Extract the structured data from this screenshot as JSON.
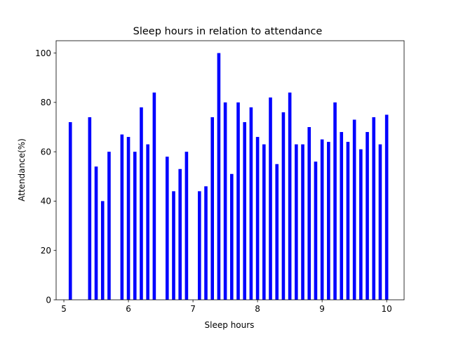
{
  "chart_data": {
    "type": "bar",
    "title": "Sleep hours in relation to attendance",
    "xlabel": "Sleep hours",
    "ylabel": "Attendance(%)",
    "xlim": [
      4.88,
      10.27
    ],
    "ylim": [
      0,
      105
    ],
    "xticks": [
      5,
      6,
      7,
      8,
      9,
      10
    ],
    "yticks": [
      0,
      20,
      40,
      60,
      80,
      100
    ],
    "grid": false,
    "bar_color": "#0000ff",
    "bar_width": 0.05,
    "x": [
      5.1,
      5.4,
      5.5,
      5.6,
      5.7,
      5.9,
      6.0,
      6.1,
      6.2,
      6.3,
      6.4,
      6.6,
      6.7,
      6.8,
      6.9,
      7.1,
      7.2,
      7.3,
      7.4,
      7.5,
      7.6,
      7.7,
      7.8,
      7.9,
      8.0,
      8.1,
      8.2,
      8.3,
      8.4,
      8.5,
      8.6,
      8.7,
      8.8,
      8.9,
      9.0,
      9.1,
      9.2,
      9.3,
      9.4,
      9.5,
      9.6,
      9.7,
      9.8,
      9.9,
      10.0
    ],
    "values": [
      72,
      74,
      54,
      40,
      60,
      67,
      66,
      60,
      78,
      63,
      84,
      58,
      44,
      53,
      60,
      44,
      46,
      74,
      100,
      80,
      51,
      80,
      72,
      78,
      66,
      63,
      82,
      55,
      76,
      84,
      63,
      63,
      70,
      56,
      65,
      64,
      80,
      68,
      64,
      73,
      61,
      68,
      74,
      63,
      75
    ]
  }
}
